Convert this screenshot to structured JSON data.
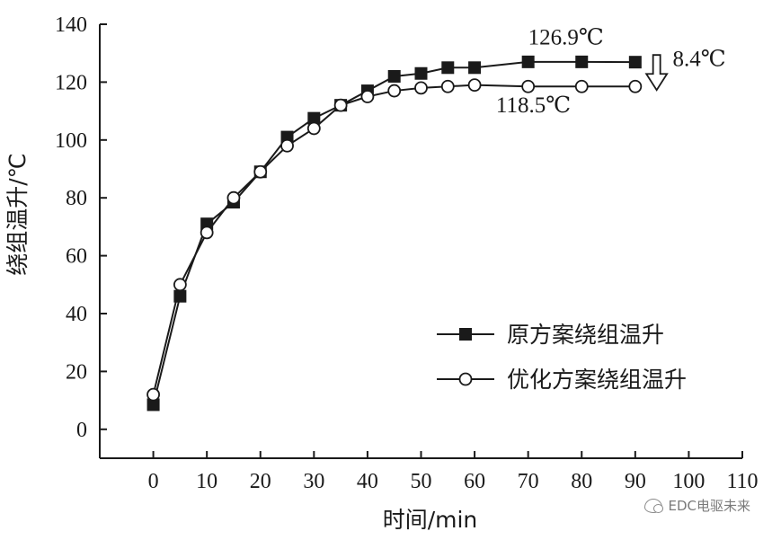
{
  "chart_data": {
    "type": "line",
    "xlabel": "时间/min",
    "ylabel": "绕组温升/℃",
    "xlim": [
      -10,
      110
    ],
    "ylim": [
      -10,
      140
    ],
    "xticks": [
      0,
      10,
      20,
      30,
      40,
      50,
      60,
      70,
      80,
      90,
      100,
      110
    ],
    "yticks": [
      0,
      20,
      40,
      60,
      80,
      100,
      120,
      140
    ],
    "grid": false,
    "legend_position": "lower-right",
    "series": [
      {
        "name": "原方案绕组温升",
        "marker": "filled-square",
        "x": [
          0,
          5,
          10,
          15,
          20,
          25,
          30,
          35,
          40,
          45,
          50,
          55,
          60,
          70,
          80,
          90
        ],
        "y": [
          8.5,
          46,
          71,
          78.5,
          89,
          101,
          107.5,
          112,
          117,
          122,
          123,
          125,
          125,
          127,
          127,
          126.9
        ]
      },
      {
        "name": "优化方案绕组温升",
        "marker": "open-circle",
        "x": [
          0,
          5,
          10,
          15,
          20,
          25,
          30,
          35,
          40,
          45,
          50,
          55,
          60,
          70,
          80,
          90
        ],
        "y": [
          12,
          50,
          68,
          80,
          89,
          98,
          104,
          112,
          115,
          117,
          118,
          118.5,
          119,
          118.5,
          118.5,
          118.5
        ]
      }
    ],
    "annotations": [
      {
        "text": "126.9℃",
        "x": 70,
        "y": 133
      },
      {
        "text": "8.4℃",
        "x": 97,
        "y": 125.5
      },
      {
        "text": "118.5℃",
        "x": 64,
        "y": 109.5
      }
    ],
    "difference_arrow": {
      "x": 94,
      "from": 126.9,
      "to": 118.5
    },
    "colors": {
      "ink": "#1a1a1a",
      "background": "#ffffff"
    }
  },
  "watermark": {
    "icon": "wechat-icon",
    "text": "EDC电驱未来"
  }
}
